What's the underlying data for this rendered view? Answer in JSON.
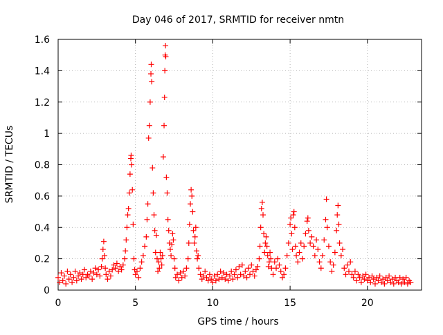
{
  "chart_data": {
    "type": "scatter",
    "title": "Day 046 of 2017, SRMTID for receiver nmtn",
    "xlabel": "GPS time / hours",
    "ylabel": "SRMTID / TECUs",
    "xlim": [
      0,
      23.5
    ],
    "ylim": [
      0,
      1.6
    ],
    "xticks": [
      0,
      5,
      10,
      15,
      20
    ],
    "xtick_labels": [
      "0",
      "5",
      "10",
      "15",
      "20"
    ],
    "yticks": [
      0,
      0.2,
      0.4,
      0.6,
      0.8,
      1.0,
      1.2,
      1.4,
      1.6
    ],
    "ytick_labels": [
      "0",
      "0.2",
      "0.4",
      "0.6",
      "0.8",
      "1",
      "1.2",
      "1.4",
      "1.6"
    ],
    "grid": true,
    "marker": "+",
    "color": "#ff0000",
    "series": [
      {
        "name": "SRMTID",
        "points": [
          [
            0.0,
            0.08
          ],
          [
            0.1,
            0.05
          ],
          [
            0.2,
            0.11
          ],
          [
            0.3,
            0.06
          ],
          [
            0.4,
            0.09
          ],
          [
            0.5,
            0.04
          ],
          [
            0.6,
            0.12
          ],
          [
            0.7,
            0.07
          ],
          [
            0.8,
            0.1
          ],
          [
            0.9,
            0.05
          ],
          [
            1.0,
            0.08
          ],
          [
            1.1,
            0.12
          ],
          [
            1.2,
            0.06
          ],
          [
            1.3,
            0.09
          ],
          [
            1.4,
            0.11
          ],
          [
            1.5,
            0.07
          ],
          [
            1.6,
            0.1
          ],
          [
            1.7,
            0.13
          ],
          [
            1.8,
            0.08
          ],
          [
            1.9,
            0.1
          ],
          [
            2.0,
            0.09
          ],
          [
            2.1,
            0.12
          ],
          [
            2.2,
            0.07
          ],
          [
            2.3,
            0.11
          ],
          [
            2.4,
            0.14
          ],
          [
            2.5,
            0.1
          ],
          [
            2.6,
            0.13
          ],
          [
            2.7,
            0.09
          ],
          [
            2.8,
            0.15
          ],
          [
            2.85,
            0.2
          ],
          [
            2.9,
            0.26
          ],
          [
            2.95,
            0.31
          ],
          [
            3.0,
            0.22
          ],
          [
            3.05,
            0.14
          ],
          [
            3.1,
            0.1
          ],
          [
            3.2,
            0.07
          ],
          [
            3.3,
            0.12
          ],
          [
            3.4,
            0.09
          ],
          [
            3.5,
            0.13
          ],
          [
            3.6,
            0.16
          ],
          [
            3.7,
            0.14
          ],
          [
            3.8,
            0.17
          ],
          [
            3.9,
            0.12
          ],
          [
            4.0,
            0.15
          ],
          [
            4.1,
            0.13
          ],
          [
            4.2,
            0.16
          ],
          [
            4.3,
            0.2
          ],
          [
            4.35,
            0.25
          ],
          [
            4.4,
            0.32
          ],
          [
            4.45,
            0.4
          ],
          [
            4.5,
            0.48
          ],
          [
            4.55,
            0.52
          ],
          [
            4.6,
            0.62
          ],
          [
            4.65,
            0.74
          ],
          [
            4.7,
            0.84
          ],
          [
            4.72,
            0.86
          ],
          [
            4.75,
            0.8
          ],
          [
            4.8,
            0.64
          ],
          [
            4.85,
            0.42
          ],
          [
            4.9,
            0.2
          ],
          [
            4.95,
            0.13
          ],
          [
            5.0,
            0.1
          ],
          [
            5.1,
            0.12
          ],
          [
            5.2,
            0.08
          ],
          [
            5.3,
            0.14
          ],
          [
            5.4,
            0.18
          ],
          [
            5.5,
            0.22
          ],
          [
            5.6,
            0.28
          ],
          [
            5.7,
            0.34
          ],
          [
            5.75,
            0.45
          ],
          [
            5.8,
            0.55
          ],
          [
            5.85,
            0.97
          ],
          [
            5.9,
            1.05
          ],
          [
            5.95,
            1.2
          ],
          [
            6.0,
            1.38
          ],
          [
            6.02,
            1.44
          ],
          [
            6.05,
            1.33
          ],
          [
            6.1,
            0.78
          ],
          [
            6.15,
            0.62
          ],
          [
            6.2,
            0.48
          ],
          [
            6.25,
            0.38
          ],
          [
            6.3,
            0.24
          ],
          [
            6.35,
            0.35
          ],
          [
            6.4,
            0.2
          ],
          [
            6.45,
            0.12
          ],
          [
            6.5,
            0.18
          ],
          [
            6.55,
            0.14
          ],
          [
            6.6,
            0.24
          ],
          [
            6.65,
            0.2
          ],
          [
            6.7,
            0.16
          ],
          [
            6.75,
            0.22
          ],
          [
            6.8,
            0.85
          ],
          [
            6.85,
            1.05
          ],
          [
            6.88,
            1.23
          ],
          [
            6.9,
            1.4
          ],
          [
            6.92,
            1.5
          ],
          [
            6.94,
            1.56
          ],
          [
            6.96,
            1.49
          ],
          [
            7.0,
            0.72
          ],
          [
            7.05,
            0.62
          ],
          [
            7.1,
            0.45
          ],
          [
            7.15,
            0.38
          ],
          [
            7.2,
            0.3
          ],
          [
            7.25,
            0.26
          ],
          [
            7.3,
            0.22
          ],
          [
            7.35,
            0.29
          ],
          [
            7.4,
            0.36
          ],
          [
            7.45,
            0.32
          ],
          [
            7.5,
            0.2
          ],
          [
            7.55,
            0.14
          ],
          [
            7.6,
            0.08
          ],
          [
            7.7,
            0.1
          ],
          [
            7.8,
            0.06
          ],
          [
            7.9,
            0.11
          ],
          [
            8.0,
            0.08
          ],
          [
            8.1,
            0.12
          ],
          [
            8.2,
            0.09
          ],
          [
            8.3,
            0.14
          ],
          [
            8.4,
            0.2
          ],
          [
            8.45,
            0.3
          ],
          [
            8.5,
            0.42
          ],
          [
            8.55,
            0.55
          ],
          [
            8.6,
            0.64
          ],
          [
            8.65,
            0.6
          ],
          [
            8.7,
            0.5
          ],
          [
            8.75,
            0.38
          ],
          [
            8.8,
            0.3
          ],
          [
            8.85,
            0.34
          ],
          [
            8.9,
            0.4
          ],
          [
            8.95,
            0.25
          ],
          [
            9.0,
            0.2
          ],
          [
            9.05,
            0.22
          ],
          [
            9.1,
            0.14
          ],
          [
            9.2,
            0.1
          ],
          [
            9.3,
            0.07
          ],
          [
            9.4,
            0.09
          ],
          [
            9.5,
            0.12
          ],
          [
            9.6,
            0.08
          ],
          [
            9.7,
            0.06
          ],
          [
            9.8,
            0.1
          ],
          [
            9.9,
            0.07
          ],
          [
            10.0,
            0.05
          ],
          [
            10.1,
            0.09
          ],
          [
            10.2,
            0.06
          ],
          [
            10.3,
            0.1
          ],
          [
            10.4,
            0.07
          ],
          [
            10.5,
            0.12
          ],
          [
            10.6,
            0.08
          ],
          [
            10.7,
            0.11
          ],
          [
            10.8,
            0.07
          ],
          [
            10.9,
            0.1
          ],
          [
            11.0,
            0.06
          ],
          [
            11.1,
            0.09
          ],
          [
            11.2,
            0.12
          ],
          [
            11.3,
            0.07
          ],
          [
            11.4,
            0.1
          ],
          [
            11.5,
            0.13
          ],
          [
            11.6,
            0.08
          ],
          [
            11.7,
            0.15
          ],
          [
            11.8,
            0.1
          ],
          [
            11.9,
            0.16
          ],
          [
            12.0,
            0.09
          ],
          [
            12.1,
            0.12
          ],
          [
            12.2,
            0.08
          ],
          [
            12.3,
            0.14
          ],
          [
            12.4,
            0.1
          ],
          [
            12.5,
            0.16
          ],
          [
            12.6,
            0.12
          ],
          [
            12.7,
            0.09
          ],
          [
            12.8,
            0.13
          ],
          [
            12.9,
            0.15
          ],
          [
            13.0,
            0.2
          ],
          [
            13.05,
            0.28
          ],
          [
            13.1,
            0.4
          ],
          [
            13.15,
            0.52
          ],
          [
            13.2,
            0.56
          ],
          [
            13.25,
            0.48
          ],
          [
            13.3,
            0.36
          ],
          [
            13.35,
            0.24
          ],
          [
            13.4,
            0.3
          ],
          [
            13.45,
            0.34
          ],
          [
            13.5,
            0.28
          ],
          [
            13.55,
            0.22
          ],
          [
            13.6,
            0.15
          ],
          [
            13.65,
            0.18
          ],
          [
            13.7,
            0.24
          ],
          [
            13.75,
            0.2
          ],
          [
            13.8,
            0.14
          ],
          [
            13.9,
            0.1
          ],
          [
            14.0,
            0.18
          ],
          [
            14.1,
            0.14
          ],
          [
            14.2,
            0.2
          ],
          [
            14.3,
            0.16
          ],
          [
            14.4,
            0.12
          ],
          [
            14.5,
            0.08
          ],
          [
            14.6,
            0.1
          ],
          [
            14.7,
            0.14
          ],
          [
            14.8,
            0.22
          ],
          [
            14.9,
            0.3
          ],
          [
            15.0,
            0.42
          ],
          [
            15.05,
            0.46
          ],
          [
            15.1,
            0.36
          ],
          [
            15.15,
            0.26
          ],
          [
            15.2,
            0.48
          ],
          [
            15.25,
            0.5
          ],
          [
            15.3,
            0.4
          ],
          [
            15.35,
            0.28
          ],
          [
            15.4,
            0.22
          ],
          [
            15.5,
            0.18
          ],
          [
            15.6,
            0.24
          ],
          [
            15.7,
            0.3
          ],
          [
            15.8,
            0.2
          ],
          [
            15.9,
            0.28
          ],
          [
            16.0,
            0.36
          ],
          [
            16.1,
            0.44
          ],
          [
            16.15,
            0.46
          ],
          [
            16.2,
            0.38
          ],
          [
            16.3,
            0.3
          ],
          [
            16.4,
            0.34
          ],
          [
            16.5,
            0.28
          ],
          [
            16.6,
            0.22
          ],
          [
            16.7,
            0.32
          ],
          [
            16.8,
            0.26
          ],
          [
            16.9,
            0.18
          ],
          [
            17.0,
            0.14
          ],
          [
            17.1,
            0.22
          ],
          [
            17.2,
            0.32
          ],
          [
            17.3,
            0.45
          ],
          [
            17.35,
            0.58
          ],
          [
            17.4,
            0.4
          ],
          [
            17.5,
            0.28
          ],
          [
            17.6,
            0.18
          ],
          [
            17.7,
            0.12
          ],
          [
            17.8,
            0.16
          ],
          [
            17.9,
            0.24
          ],
          [
            18.0,
            0.38
          ],
          [
            18.05,
            0.48
          ],
          [
            18.1,
            0.54
          ],
          [
            18.15,
            0.42
          ],
          [
            18.2,
            0.3
          ],
          [
            18.3,
            0.22
          ],
          [
            18.4,
            0.26
          ],
          [
            18.5,
            0.14
          ],
          [
            18.6,
            0.1
          ],
          [
            18.7,
            0.16
          ],
          [
            18.8,
            0.12
          ],
          [
            18.9,
            0.18
          ],
          [
            19.0,
            0.1
          ],
          [
            19.1,
            0.08
          ],
          [
            19.2,
            0.12
          ],
          [
            19.3,
            0.06
          ],
          [
            19.4,
            0.1
          ],
          [
            19.5,
            0.08
          ],
          [
            19.6,
            0.05
          ],
          [
            19.7,
            0.09
          ],
          [
            19.8,
            0.07
          ],
          [
            19.9,
            0.1
          ],
          [
            20.0,
            0.06
          ],
          [
            20.1,
            0.08
          ],
          [
            20.2,
            0.05
          ],
          [
            20.3,
            0.09
          ],
          [
            20.4,
            0.07
          ],
          [
            20.5,
            0.04
          ],
          [
            20.6,
            0.08
          ],
          [
            20.7,
            0.06
          ],
          [
            20.8,
            0.09
          ],
          [
            20.9,
            0.05
          ],
          [
            21.0,
            0.07
          ],
          [
            21.1,
            0.04
          ],
          [
            21.2,
            0.08
          ],
          [
            21.3,
            0.06
          ],
          [
            21.4,
            0.09
          ],
          [
            21.5,
            0.05
          ],
          [
            21.6,
            0.07
          ],
          [
            21.7,
            0.04
          ],
          [
            21.8,
            0.08
          ],
          [
            21.9,
            0.06
          ],
          [
            22.0,
            0.05
          ],
          [
            22.1,
            0.08
          ],
          [
            22.2,
            0.04
          ],
          [
            22.3,
            0.07
          ],
          [
            22.4,
            0.05
          ],
          [
            22.5,
            0.08
          ],
          [
            22.6,
            0.04
          ],
          [
            22.7,
            0.06
          ],
          [
            22.8,
            0.05
          ]
        ]
      }
    ]
  }
}
